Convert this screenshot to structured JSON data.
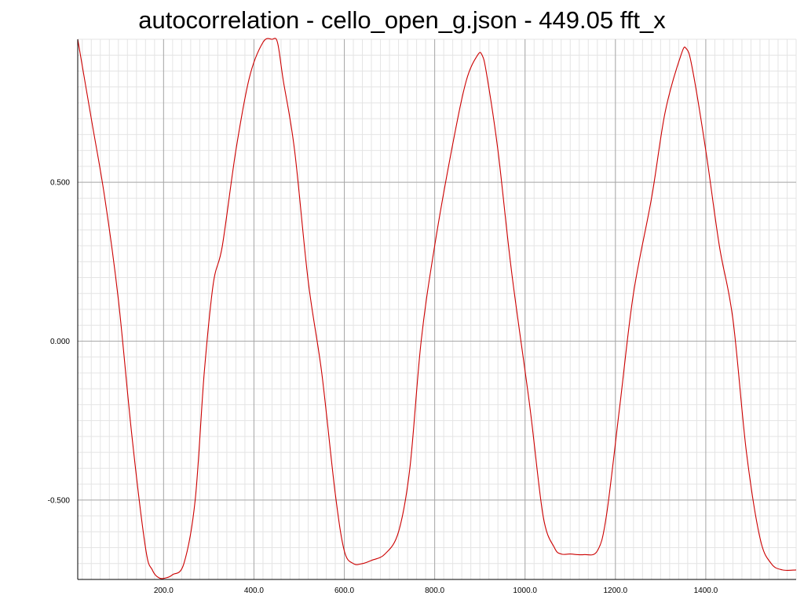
{
  "chart_data": {
    "type": "line",
    "title": "autocorrelation - cello_open_g.json - 449.05 fft_x",
    "xlabel": "",
    "ylabel": "",
    "xlim": [
      10,
      1600
    ],
    "ylim": [
      -0.75,
      0.95
    ],
    "x_ticks": [
      {
        "value": 200,
        "label": "200.0"
      },
      {
        "value": 400,
        "label": "400.0"
      },
      {
        "value": 600,
        "label": "600.0"
      },
      {
        "value": 800,
        "label": "800.0"
      },
      {
        "value": 1000,
        "label": "1000.0"
      },
      {
        "value": 1200,
        "label": "1200.0"
      },
      {
        "value": 1400,
        "label": "1400.0"
      }
    ],
    "y_ticks": [
      {
        "value": 0.5,
        "label": "0.500"
      },
      {
        "value": 0.0,
        "label": "0.000"
      },
      {
        "value": -0.5,
        "label": "-0.500"
      }
    ],
    "grid": true,
    "legend": "none",
    "line_color": "#cc0000",
    "series": [
      {
        "x": [
          10,
          40,
          70,
          100,
          130,
          160,
          175,
          190,
          205,
          220,
          245,
          270,
          290,
          310,
          330,
          360,
          390,
          420,
          440,
          452,
          465,
          490,
          520,
          550,
          580,
          600,
          620,
          640,
          660,
          690,
          720,
          745,
          770,
          800,
          840,
          870,
          895,
          905,
          915,
          940,
          970,
          1010,
          1040,
          1065,
          1080,
          1100,
          1130,
          1160,
          1180,
          1210,
          1240,
          1280,
          1310,
          1345,
          1357,
          1370,
          1400,
          1430,
          1460,
          1490,
          1520,
          1545,
          1570,
          1600
        ],
        "y": [
          0.95,
          0.7,
          0.45,
          0.13,
          -0.3,
          -0.65,
          -0.72,
          -0.745,
          -0.745,
          -0.735,
          -0.7,
          -0.5,
          -0.1,
          0.18,
          0.3,
          0.6,
          0.83,
          0.94,
          0.95,
          0.94,
          0.82,
          0.6,
          0.19,
          -0.1,
          -0.48,
          -0.66,
          -0.7,
          -0.7,
          -0.69,
          -0.67,
          -0.6,
          -0.4,
          0.0,
          0.3,
          0.62,
          0.82,
          0.9,
          0.9,
          0.84,
          0.6,
          0.22,
          -0.2,
          -0.55,
          -0.65,
          -0.67,
          -0.67,
          -0.672,
          -0.66,
          -0.55,
          -0.2,
          0.15,
          0.45,
          0.72,
          0.9,
          0.92,
          0.86,
          0.6,
          0.3,
          0.07,
          -0.35,
          -0.62,
          -0.7,
          -0.72,
          -0.72
        ]
      }
    ]
  }
}
